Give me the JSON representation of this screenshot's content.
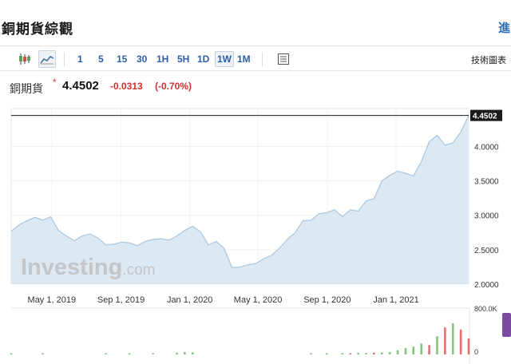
{
  "page": {
    "title": "銅期貨綜觀",
    "corner_link": "進"
  },
  "toolbar": {
    "icons": [
      "candlestick-icon",
      "area-chart-icon",
      "table-icon"
    ],
    "timeframes": [
      {
        "label": "1",
        "active": false
      },
      {
        "label": "5",
        "active": false
      },
      {
        "label": "15",
        "active": false
      },
      {
        "label": "30",
        "active": false
      },
      {
        "label": "1H",
        "active": false
      },
      {
        "label": "5H",
        "active": false
      },
      {
        "label": "1D",
        "active": false
      },
      {
        "label": "1W",
        "active": true
      },
      {
        "label": "1M",
        "active": false
      }
    ],
    "tech_chart_label": "技術圖表"
  },
  "quote": {
    "name": "銅期貨",
    "marker": "*",
    "price": "4.4502",
    "change": "-0.0313",
    "change_pct": "(-0.70%)"
  },
  "colors": {
    "area_fill": "#dce9f3",
    "line": "#a9c6de",
    "negative": "#d32f2f",
    "volume_up": "#7fc77f",
    "volume_down": "#e07070",
    "price_tag": "#1a1a1a",
    "link": "#2b5fa8"
  },
  "watermark": {
    "brand": "Investing",
    "suffix": ".com"
  },
  "chart_data": {
    "type": "area",
    "title": "",
    "xlabel": "",
    "ylabel": "",
    "x_ticks": [
      "May 1, 2019",
      "Sep 1, 2019",
      "Jan 1, 2020",
      "May 1, 2020",
      "Sep 1, 2020",
      "Jan 1, 2021"
    ],
    "y_ticks": [
      "2.0000",
      "2.5000",
      "3.0000",
      "3.5000",
      "4.0000"
    ],
    "ylim": [
      2.0,
      4.55
    ],
    "last_price_label": "4.4502",
    "series": [
      {
        "x": [
          "2019-02-18",
          "2019-03-04",
          "2019-03-18",
          "2019-04-01",
          "2019-04-15",
          "2019-04-29",
          "2019-05-13",
          "2019-05-27",
          "2019-06-10",
          "2019-06-24",
          "2019-07-08",
          "2019-07-22",
          "2019-08-05",
          "2019-08-19",
          "2019-09-02",
          "2019-09-16",
          "2019-09-30",
          "2019-10-14",
          "2019-10-28",
          "2019-11-11",
          "2019-11-25",
          "2019-12-09",
          "2019-12-23",
          "2020-01-06",
          "2020-01-20",
          "2020-02-03",
          "2020-02-17",
          "2020-03-02",
          "2020-03-16",
          "2020-03-30",
          "2020-04-13",
          "2020-04-27",
          "2020-05-11",
          "2020-05-25",
          "2020-06-08",
          "2020-06-22",
          "2020-07-06",
          "2020-07-20",
          "2020-08-03",
          "2020-08-17",
          "2020-08-31",
          "2020-09-14",
          "2020-09-28",
          "2020-10-12",
          "2020-10-26",
          "2020-11-09",
          "2020-11-23",
          "2020-12-07",
          "2020-12-21",
          "2021-01-04",
          "2021-01-18",
          "2021-02-01",
          "2021-02-15",
          "2021-03-01",
          "2021-03-15",
          "2021-03-29",
          "2021-04-12",
          "2021-04-26",
          "2021-05-10"
        ],
        "values": [
          2.77,
          2.86,
          2.92,
          2.97,
          2.93,
          2.98,
          2.78,
          2.7,
          2.63,
          2.7,
          2.73,
          2.67,
          2.57,
          2.58,
          2.61,
          2.6,
          2.56,
          2.62,
          2.65,
          2.66,
          2.64,
          2.7,
          2.78,
          2.84,
          2.76,
          2.57,
          2.62,
          2.52,
          2.24,
          2.25,
          2.28,
          2.3,
          2.37,
          2.42,
          2.52,
          2.65,
          2.75,
          2.92,
          2.93,
          3.02,
          3.04,
          3.08,
          2.98,
          3.08,
          3.06,
          3.21,
          3.24,
          3.5,
          3.58,
          3.64,
          3.61,
          3.57,
          3.78,
          4.07,
          4.16,
          4.02,
          4.05,
          4.21,
          4.45
        ]
      }
    ],
    "volume": {
      "ylabels": [
        "800.0K",
        "0"
      ],
      "up": [
        1,
        0,
        0,
        0,
        1,
        0,
        0,
        0,
        0,
        0,
        0,
        0,
        1,
        0,
        0,
        1,
        0,
        0,
        1,
        0,
        0,
        1,
        1,
        1,
        0,
        0,
        0,
        0,
        0,
        0,
        0,
        0,
        0,
        0,
        0,
        0,
        0,
        0,
        1,
        0,
        1,
        0,
        1,
        0,
        1,
        1,
        0,
        1,
        1,
        1,
        1,
        1,
        1,
        0,
        1,
        0,
        1,
        0,
        0
      ],
      "values": [
        15,
        0,
        0,
        0,
        8,
        0,
        0,
        0,
        0,
        0,
        0,
        0,
        10,
        0,
        0,
        12,
        0,
        0,
        20,
        0,
        0,
        35,
        45,
        40,
        0,
        0,
        0,
        0,
        0,
        0,
        0,
        0,
        0,
        0,
        0,
        0,
        0,
        0,
        20,
        0,
        22,
        0,
        25,
        20,
        30,
        28,
        35,
        40,
        45,
        80,
        120,
        150,
        210,
        180,
        350,
        520,
        600,
        480,
        310
      ]
    }
  }
}
